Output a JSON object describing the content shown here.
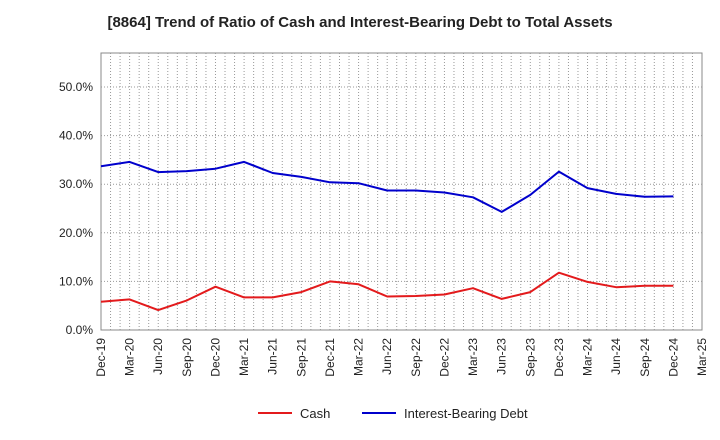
{
  "title": "[8864]  Trend of Ratio of Cash and Interest-Bearing Debt to Total Assets",
  "chart_data": {
    "type": "line",
    "title": "[8864]  Trend of Ratio of Cash and Interest-Bearing Debt to Total Assets",
    "xlabel": "",
    "ylabel": "",
    "ylim": [
      0,
      57
    ],
    "y_ticks": [
      "0.0%",
      "10.0%",
      "20.0%",
      "30.0%",
      "40.0%",
      "50.0%"
    ],
    "y_tick_values": [
      0,
      10,
      20,
      30,
      40,
      50
    ],
    "x_tick_labels": [
      "Dec-19",
      "Mar-20",
      "Jun-20",
      "Sep-20",
      "Dec-20",
      "Mar-21",
      "Jun-21",
      "Sep-21",
      "Dec-21",
      "Mar-22",
      "Jun-22",
      "Sep-22",
      "Dec-22",
      "Mar-23",
      "Jun-23",
      "Sep-23",
      "Dec-23",
      "Mar-24",
      "Jun-24",
      "Sep-24",
      "Dec-24",
      "Mar-25"
    ],
    "categories": [
      "Dec-19",
      "Mar-20",
      "Jun-20",
      "Sep-20",
      "Dec-20",
      "Mar-21",
      "Jun-21",
      "Sep-21",
      "Dec-21",
      "Mar-22",
      "Jun-22",
      "Sep-22",
      "Dec-22",
      "Mar-23",
      "Jun-23",
      "Sep-23",
      "Dec-23",
      "Mar-24",
      "Jun-24",
      "Sep-24",
      "Dec-24"
    ],
    "grid": true,
    "legend_position": "bottom",
    "series": [
      {
        "name": "Cash",
        "color": "#e31a1c",
        "values": [
          5.8,
          6.3,
          4.1,
          6.1,
          8.9,
          6.7,
          6.7,
          7.8,
          10.0,
          9.4,
          6.9,
          7.0,
          7.3,
          8.6,
          6.4,
          7.8,
          11.8,
          9.9,
          8.8,
          9.1,
          9.1
        ]
      },
      {
        "name": "Interest-Bearing Debt",
        "color": "#0000cc",
        "values": [
          33.7,
          34.6,
          32.5,
          32.7,
          33.2,
          34.6,
          32.3,
          31.5,
          30.4,
          30.2,
          28.7,
          28.7,
          28.3,
          27.3,
          24.3,
          27.8,
          32.6,
          29.2,
          28.0,
          27.4,
          27.5
        ]
      }
    ]
  }
}
